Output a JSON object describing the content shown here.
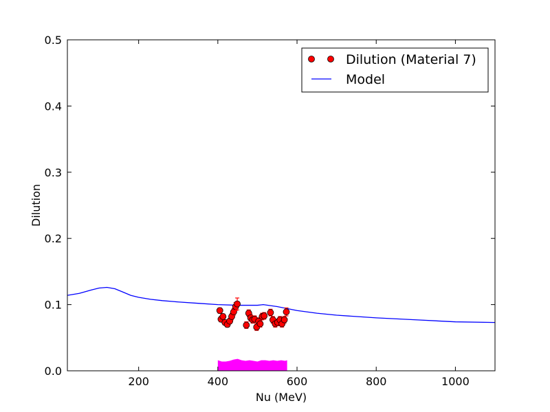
{
  "chart_data": {
    "type": "scatter",
    "title": "",
    "xlabel": "Nu (MeV)",
    "ylabel": "Dilution",
    "xlim": [
      20,
      1100
    ],
    "ylim": [
      0,
      0.5
    ],
    "xticks": [
      200,
      400,
      600,
      800,
      1000
    ],
    "yticks": [
      0.0,
      0.1,
      0.2,
      0.3,
      0.4,
      0.5
    ],
    "ytick_labels": [
      "0.0",
      "0.1",
      "0.2",
      "0.3",
      "0.4",
      "0.5"
    ],
    "grid": false,
    "legend": "top-right",
    "colors": {
      "data": "#ff0000",
      "model": "#0000ff",
      "band": "#ff00ff"
    },
    "series": [
      {
        "name": "Dilution (Material 7)",
        "kind": "errorbar-points",
        "points": [
          {
            "x": 405,
            "y": 0.091,
            "err": 0.004
          },
          {
            "x": 408,
            "y": 0.078,
            "err": 0.004
          },
          {
            "x": 413,
            "y": 0.082,
            "err": 0.004
          },
          {
            "x": 418,
            "y": 0.073,
            "err": 0.004
          },
          {
            "x": 424,
            "y": 0.07,
            "err": 0.004
          },
          {
            "x": 430,
            "y": 0.075,
            "err": 0.004
          },
          {
            "x": 435,
            "y": 0.082,
            "err": 0.005
          },
          {
            "x": 440,
            "y": 0.089,
            "err": 0.005
          },
          {
            "x": 445,
            "y": 0.097,
            "err": 0.006
          },
          {
            "x": 449,
            "y": 0.101,
            "err": 0.009
          },
          {
            "x": 472,
            "y": 0.069,
            "err": 0.005
          },
          {
            "x": 478,
            "y": 0.087,
            "err": 0.005
          },
          {
            "x": 483,
            "y": 0.08,
            "err": 0.005
          },
          {
            "x": 488,
            "y": 0.077,
            "err": 0.005
          },
          {
            "x": 493,
            "y": 0.078,
            "err": 0.005
          },
          {
            "x": 498,
            "y": 0.066,
            "err": 0.005
          },
          {
            "x": 503,
            "y": 0.075,
            "err": 0.005
          },
          {
            "x": 507,
            "y": 0.071,
            "err": 0.005
          },
          {
            "x": 512,
            "y": 0.082,
            "err": 0.005
          },
          {
            "x": 517,
            "y": 0.083,
            "err": 0.005
          },
          {
            "x": 533,
            "y": 0.088,
            "err": 0.005
          },
          {
            "x": 539,
            "y": 0.077,
            "err": 0.005
          },
          {
            "x": 545,
            "y": 0.071,
            "err": 0.005
          },
          {
            "x": 551,
            "y": 0.073,
            "err": 0.005
          },
          {
            "x": 557,
            "y": 0.077,
            "err": 0.005
          },
          {
            "x": 562,
            "y": 0.071,
            "err": 0.005
          },
          {
            "x": 568,
            "y": 0.077,
            "err": 0.005
          },
          {
            "x": 573,
            "y": 0.089,
            "err": 0.006
          }
        ]
      },
      {
        "name": "Model",
        "kind": "line",
        "x": [
          20,
          50,
          80,
          100,
          120,
          140,
          160,
          180,
          200,
          230,
          260,
          300,
          350,
          400,
          450,
          500,
          515,
          550,
          600,
          650,
          700,
          800,
          900,
          1000,
          1100
        ],
        "y": [
          0.114,
          0.117,
          0.122,
          0.125,
          0.126,
          0.124,
          0.119,
          0.114,
          0.111,
          0.108,
          0.106,
          0.104,
          0.102,
          0.1,
          0.099,
          0.099,
          0.1,
          0.097,
          0.091,
          0.087,
          0.084,
          0.08,
          0.077,
          0.074,
          0.073
        ]
      },
      {
        "name": "",
        "kind": "band",
        "x": [
          400,
          410,
          420,
          430,
          440,
          450,
          460,
          470,
          480,
          490,
          500,
          510,
          520,
          530,
          540,
          550,
          560,
          570,
          575
        ],
        "y": [
          0.016,
          0.014,
          0.014,
          0.015,
          0.017,
          0.018,
          0.016,
          0.015,
          0.016,
          0.015,
          0.014,
          0.016,
          0.016,
          0.015,
          0.016,
          0.015,
          0.016,
          0.015,
          0.016
        ]
      }
    ]
  }
}
